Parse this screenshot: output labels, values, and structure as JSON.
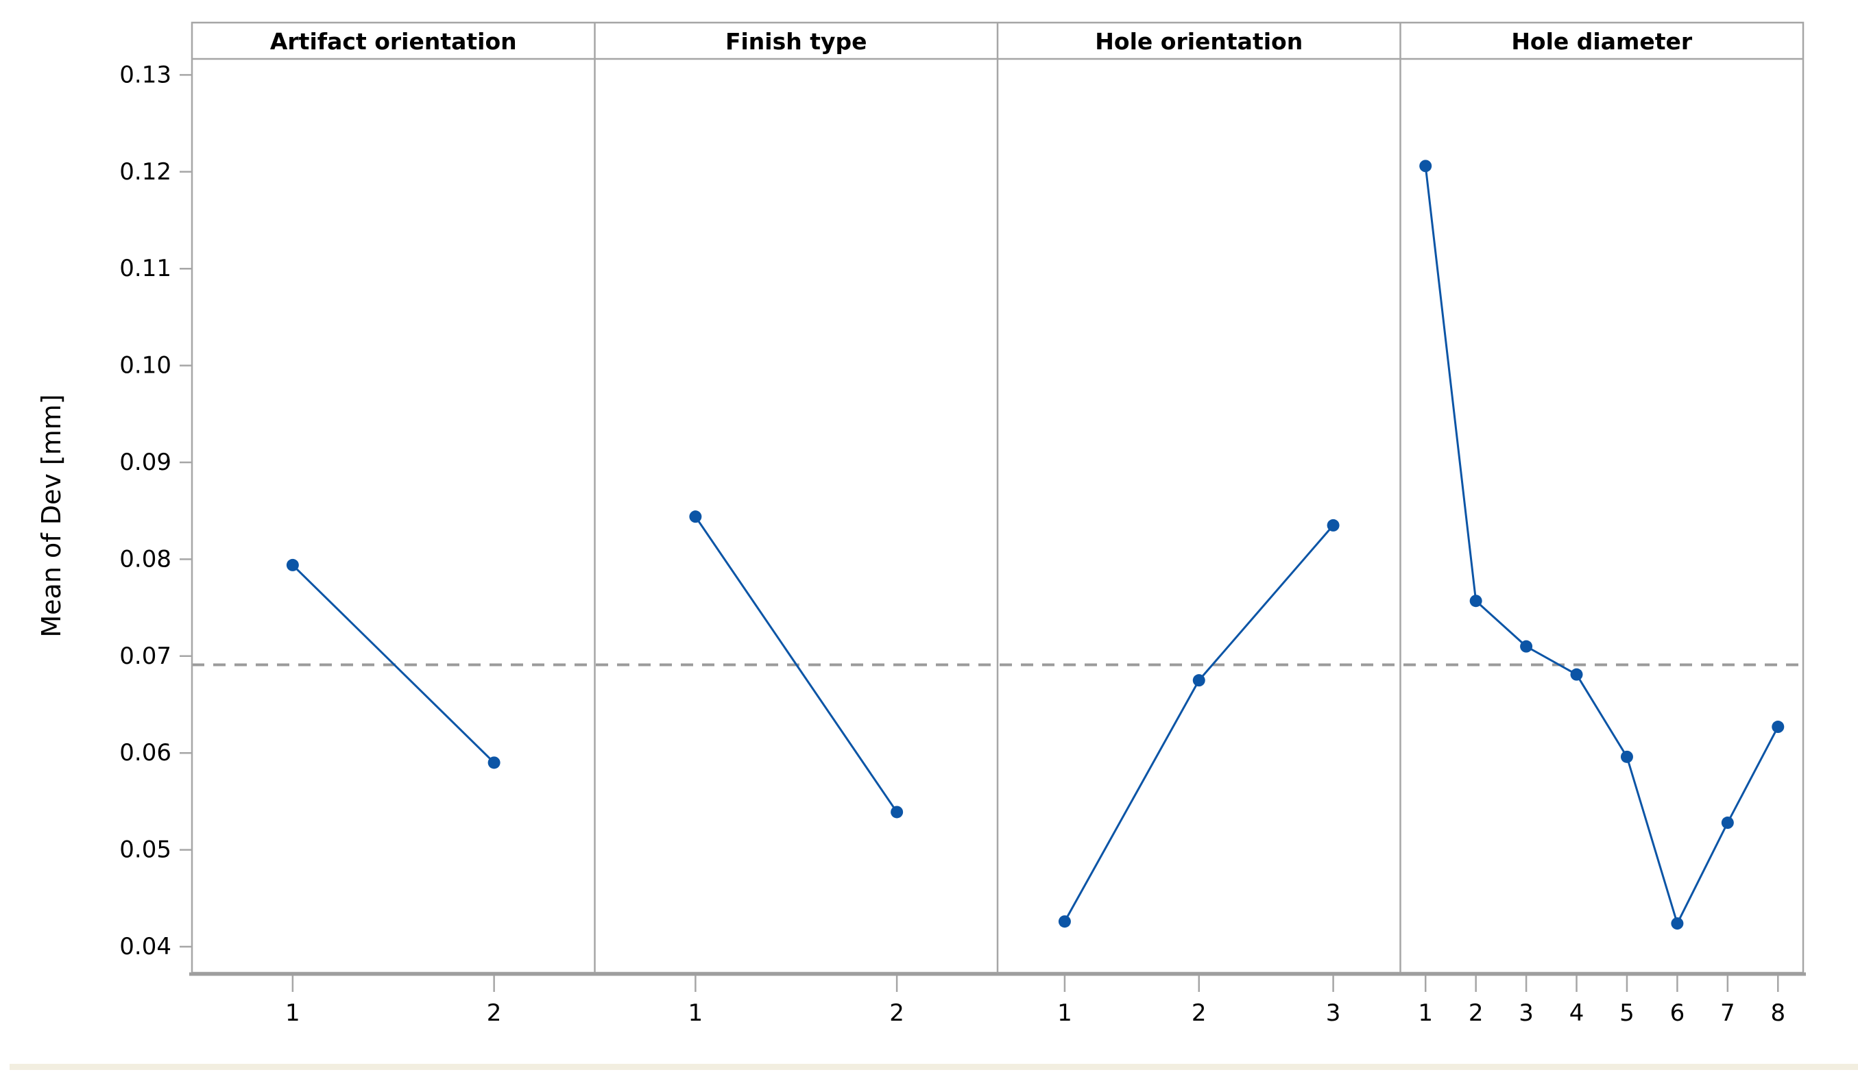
{
  "chart_data": {
    "type": "line",
    "title": "",
    "ylabel": "Mean of Dev [mm]",
    "xlabel": "",
    "ylim": [
      0.04,
      0.13
    ],
    "ytick_step": 0.01,
    "ytick_labels": [
      "0.04",
      "0.05",
      "0.06",
      "0.07",
      "0.08",
      "0.09",
      "0.10",
      "0.11",
      "0.12",
      "0.13"
    ],
    "reference_line": 0.0691,
    "grid": false,
    "legend": "none",
    "marker": "circle",
    "panels": [
      {
        "title": "Artifact orientation",
        "categories": [
          "1",
          "2"
        ],
        "values": [
          0.0794,
          0.059
        ]
      },
      {
        "title": "Finish type",
        "categories": [
          "1",
          "2"
        ],
        "values": [
          0.0844,
          0.0539
        ]
      },
      {
        "title": "Hole orientation",
        "categories": [
          "1",
          "2",
          "3"
        ],
        "values": [
          0.0426,
          0.0675,
          0.0835
        ]
      },
      {
        "title": "Hole diameter",
        "categories": [
          "1",
          "2",
          "3",
          "4",
          "5",
          "6",
          "7",
          "8"
        ],
        "values": [
          0.1206,
          0.0757,
          0.071,
          0.0681,
          0.0596,
          0.0424,
          0.0528,
          0.0627
        ]
      }
    ],
    "colors": {
      "series": "#0C55A6",
      "reference_line": "#9B9B9B",
      "frame": "#A6A6A6",
      "axis_bottom": "#9E9E9E",
      "text": "#000000",
      "background": "#FFFFFF"
    }
  },
  "footer": {
    "strip_color": "#F2EEE0"
  }
}
